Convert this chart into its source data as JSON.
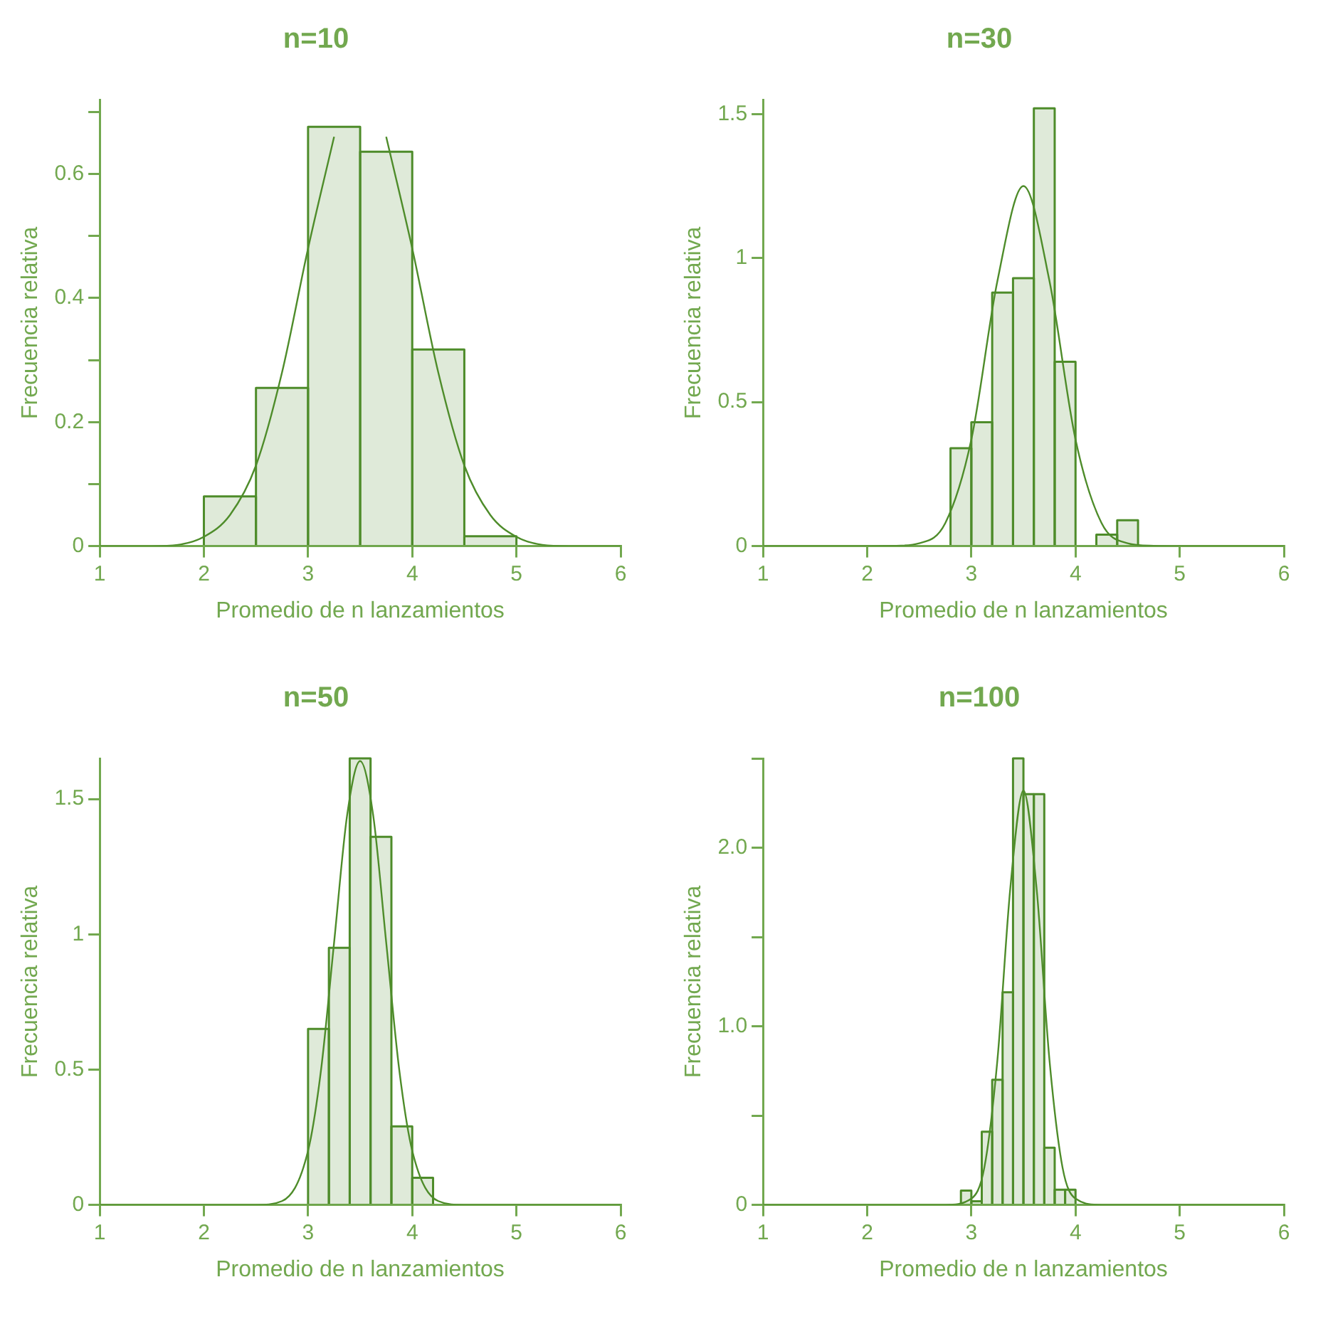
{
  "chart_data": [
    {
      "type": "histogram",
      "title": "n=10",
      "xlabel": "Promedio de n lanzamientos",
      "ylabel": "Frecuencia relativa",
      "xlim": [
        1,
        6
      ],
      "xticks": [
        1,
        2,
        3,
        4,
        5,
        6
      ],
      "ylim": [
        0,
        0.72
      ],
      "yticks": [
        0,
        {
          "value": 0.1,
          "label": null
        },
        0.2,
        {
          "value": 0.3,
          "label": null
        },
        0.4,
        {
          "value": 0.5,
          "label": null
        },
        0.6,
        {
          "value": 0.7,
          "label": null
        }
      ],
      "series": [
        {
          "color": "#4e8c2a",
          "bins": [
            2,
            2.5,
            3,
            3.5,
            4,
            4.5,
            5
          ],
          "values": [
            0.08,
            0.255,
            0.676,
            0.636,
            0.317,
            0.016
          ]
        },
        {
          "type": "line",
          "color": "#4e8c2a",
          "x": [
            1,
            1.5,
            1.75,
            2,
            2.25,
            2.5,
            2.75,
            3,
            3.25,
            3.5,
            3.75,
            4,
            4.25,
            4.5,
            4.75,
            5,
            5.25,
            5.5,
            6
          ],
          "values": [
            0,
            0,
            0.002,
            0.015,
            0.05,
            0.13,
            0.28,
            0.48,
            0.66,
            null,
            0.66,
            0.48,
            0.28,
            0.13,
            0.05,
            0.015,
            0.002,
            0,
            0
          ]
        }
      ]
    },
    {
      "type": "histogram",
      "title": "n=30",
      "xlabel": "Promedio de n lanzamientos",
      "ylabel": "Frecuencia relativa",
      "xlim": [
        1,
        6
      ],
      "xticks": [
        1,
        2,
        3,
        4,
        5,
        6
      ],
      "ylim": [
        0,
        1.55
      ],
      "yticks": [
        0,
        0.5,
        1,
        1.5
      ],
      "series": [
        {
          "color": "#4e8c2a",
          "bins": [
            2.8,
            3,
            3.2,
            3.4,
            3.6,
            3.8,
            4,
            4.2,
            4.4,
            4.6
          ],
          "values": [
            0.34,
            0.43,
            0.88,
            0.93,
            1.52,
            0.64,
            0,
            0.04,
            0.09
          ]
        },
        {
          "type": "line",
          "color": "#4e8c2a",
          "x": [
            1,
            2,
            2.25,
            2.5,
            2.75,
            3,
            3.25,
            3.5,
            3.75,
            4,
            4.25,
            4.5,
            4.75,
            5,
            6
          ],
          "values": [
            0,
            0,
            0.001,
            0.01,
            0.08,
            0.37,
            0.92,
            1.25,
            0.92,
            0.37,
            0.08,
            0.01,
            0.001,
            0,
            0
          ]
        }
      ]
    },
    {
      "type": "histogram",
      "title": "n=50",
      "xlabel": "Promedio de n lanzamientos",
      "ylabel": "Frecuencia relativa",
      "xlim": [
        1,
        6
      ],
      "xticks": [
        1,
        2,
        3,
        4,
        5,
        6
      ],
      "ylim": [
        0,
        1.65
      ],
      "yticks": [
        0,
        0.5,
        1,
        1.5
      ],
      "series": [
        {
          "color": "#4e8c2a",
          "bins": [
            3,
            3.2,
            3.4,
            3.6,
            3.8,
            4,
            4.2
          ],
          "values": [
            0.65,
            0.95,
            1.65,
            1.36,
            0.29,
            0.1
          ]
        },
        {
          "type": "line",
          "color": "#4e8c2a",
          "x": [
            1,
            2.5,
            2.75,
            3,
            3.125,
            3.25,
            3.375,
            3.5,
            3.625,
            3.75,
            3.875,
            4,
            4.25,
            4.5,
            6
          ],
          "values": [
            0,
            0,
            0.014,
            0.2,
            0.5,
            0.97,
            1.44,
            1.64,
            1.44,
            0.97,
            0.5,
            0.2,
            0.014,
            0,
            0
          ]
        }
      ]
    },
    {
      "type": "histogram",
      "title": "n=100",
      "xlabel": "Promedio de n lanzamientos",
      "ylabel": "Frecuencia relativa",
      "xlim": [
        1,
        6
      ],
      "xticks": [
        1,
        2,
        3,
        4,
        5,
        6
      ],
      "ylim": [
        0,
        2.5
      ],
      "yticks": [
        0,
        {
          "value": 0.5,
          "label": null
        },
        {
          "value": 1,
          "label": "1.0"
        },
        {
          "value": 1.5,
          "label": null
        },
        {
          "value": 2,
          "label": "2.0"
        },
        {
          "value": 2.5,
          "label": null
        }
      ],
      "series": [
        {
          "color": "#4e8c2a",
          "bins": [
            2.9,
            3,
            3.1,
            3.2,
            3.3,
            3.4,
            3.5,
            3.6,
            3.7,
            3.8,
            3.9,
            4
          ],
          "values": [
            0.08,
            0.02,
            0.41,
            0.7,
            1.19,
            2.5,
            2.3,
            2.3,
            0.32,
            0.085,
            0.085
          ]
        },
        {
          "type": "line",
          "color": "#4e8c2a",
          "x": [
            1,
            2.75,
            3,
            3.125,
            3.25,
            3.375,
            3.5,
            3.625,
            3.75,
            3.875,
            4,
            4.25,
            6
          ],
          "values": [
            0,
            0,
            0.035,
            0.21,
            0.81,
            1.78,
            2.32,
            1.78,
            0.81,
            0.21,
            0.035,
            0,
            0
          ]
        }
      ]
    }
  ]
}
